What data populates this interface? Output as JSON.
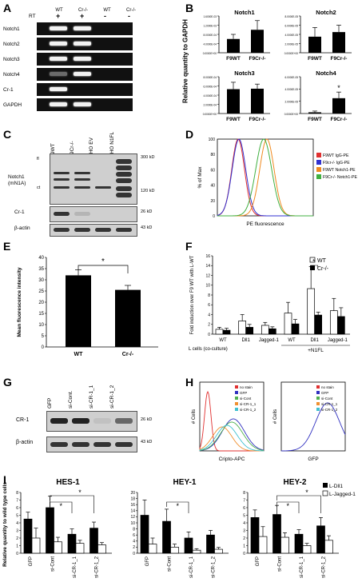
{
  "panels": {
    "A": {
      "letter": "A",
      "cols": [
        "WT",
        "Cr-/-",
        "WT",
        "Cr-/-"
      ],
      "rt_label": "RT",
      "rt_signs": [
        "+",
        "+",
        "-",
        "-"
      ],
      "rows": [
        "Notch1",
        "Notch2",
        "Notch3",
        "Notch4",
        "Cr-1",
        "GAPDH"
      ]
    },
    "B": {
      "letter": "B",
      "ylabel": "Relative quantity to GAPDH",
      "charts": [
        {
          "title": "Notch1",
          "yticks": [
            "0.0000E+00",
            "4.0000E-04",
            "8.0000E-04",
            "1.2000E-03",
            "1.6000E-03"
          ]
        },
        {
          "title": "Notch2",
          "yticks": [
            "0.0000E+00",
            "2.0000E-05",
            "4.0000E-05",
            "6.0000E-05",
            "8.0000E-05"
          ]
        },
        {
          "title": "Notch3",
          "yticks": [
            "0.0000E+00",
            "2.0000E-04",
            "4.0000E-04",
            "6.0000E-04",
            "8.0000E-04"
          ]
        },
        {
          "title": "Notch4",
          "yticks": [
            "0.0000E+00",
            "2.0000E-05",
            "4.0000E-05",
            "6.0000E-05"
          ],
          "star": "*"
        }
      ],
      "xcats": [
        "F9WT",
        "F9Cr-/-"
      ]
    },
    "C": {
      "letter": "C",
      "cols": [
        "F9WT",
        "F9Cr-/-",
        "CHO EV",
        "CHO N1FL"
      ],
      "left_labels": [
        "fl",
        "Notch1\n(mN1A)",
        "ct",
        "Cr-1",
        "β-actin"
      ],
      "right_labels": [
        "300 kD",
        "120 kD",
        "26 kD",
        "43 kD"
      ]
    },
    "D": {
      "letter": "D",
      "legend": [
        "F9WT IgG-PE",
        "F9cr-/- IgG-PE",
        "F9WT Notch1-PE",
        "F9Cr-/- Notch1-PE"
      ],
      "legend_colors": [
        "#e03030",
        "#3030d0",
        "#f08a20",
        "#40b040"
      ],
      "ylabel": "% of Max",
      "xlabel": "PE fluorescence",
      "yticks": [
        "0",
        "20",
        "40",
        "60",
        "80",
        "100"
      ]
    },
    "E": {
      "letter": "E",
      "ylabel": "Mean fluorescence intensity",
      "star": "*",
      "yticks": [
        "0",
        "5",
        "10",
        "15",
        "20",
        "25",
        "30",
        "35",
        "40"
      ]
    },
    "F": {
      "letter": "F",
      "ylabel": "Fold induction over F9 WT with L-WT",
      "legend": [
        "WT",
        "Cr-/-"
      ],
      "groups": [
        "WT",
        "Dll1",
        "Jagged-1",
        "WT",
        "Dll1",
        "Jagged-1"
      ],
      "xleft": "L cells (co-culture)",
      "xright": "+N1FL",
      "star": "*",
      "yticks": [
        "0",
        "2",
        "4",
        "6",
        "8",
        "10",
        "12",
        "14",
        "16"
      ]
    },
    "G": {
      "letter": "G",
      "cols": [
        "GFP",
        "si-Cont.",
        "si-CR-1_1",
        "si-CR-1_2"
      ],
      "left_labels": [
        "CR-1",
        "β-actin"
      ],
      "right_labels": [
        "26 kD",
        "43 kD"
      ]
    },
    "H": {
      "letter": "H",
      "legend": [
        "no stain",
        "GFP",
        "si-Cont",
        "si-CR-1_1",
        "si-CR-1_2"
      ],
      "legend_colors": [
        "#e03030",
        "#3030c0",
        "#50b050",
        "#f09030",
        "#40c0d0"
      ],
      "ylabel": "# Cells",
      "xlabel_left": "Cripto-APC",
      "xlabel_right": "GFP"
    },
    "I": {
      "letter": "I",
      "ylabel": "Relative quantity to wild type cells",
      "legend": [
        "L-Dll1",
        "L-Jagged-1"
      ],
      "cats": [
        "GFP",
        "si-Cont",
        "si-CR-1_1",
        "si-CR-1_2"
      ],
      "charts": [
        {
          "title": "HES-1",
          "yticks": [
            "0",
            "1",
            "2",
            "3",
            "4",
            "5",
            "6",
            "7",
            "8"
          ]
        },
        {
          "title": "HEY-1",
          "yticks": [
            "0",
            "2",
            "4",
            "6",
            "8",
            "10",
            "12",
            "14",
            "16",
            "18",
            "20"
          ]
        },
        {
          "title": "HEY-2",
          "yticks": [
            "0",
            "1",
            "2",
            "3",
            "4",
            "5",
            "6",
            "7",
            "8"
          ]
        }
      ],
      "star": "*"
    }
  },
  "chart_data": [
    {
      "type": "bar",
      "panel": "B",
      "title": "Notch1",
      "categories": [
        "F9WT",
        "F9Cr-/-"
      ],
      "values": [
        0.0006,
        0.001
      ],
      "errors": [
        0.0002,
        0.0004
      ],
      "ylim": [
        0,
        0.0016
      ]
    },
    {
      "type": "bar",
      "panel": "B",
      "title": "Notch2",
      "categories": [
        "F9WT",
        "F9Cr-/-"
      ],
      "values": [
        3.5e-05,
        4.5e-05
      ],
      "errors": [
        2e-05,
        1.5e-05
      ],
      "ylim": [
        0,
        8e-05
      ]
    },
    {
      "type": "bar",
      "panel": "B",
      "title": "Notch3",
      "categories": [
        "F9WT",
        "F9Cr-/-"
      ],
      "values": [
        0.00053,
        0.00054
      ],
      "errors": [
        0.00015,
        0.0001
      ],
      "ylim": [
        0,
        0.0008
      ]
    },
    {
      "type": "bar",
      "panel": "B",
      "title": "Notch4",
      "categories": [
        "F9WT",
        "F9Cr-/-"
      ],
      "values": [
        2e-06,
        2.5e-05
      ],
      "errors": [
        2e-06,
        1e-05
      ],
      "ylim": [
        0,
        6e-05
      ]
    },
    {
      "type": "bar",
      "panel": "E",
      "categories": [
        "WT",
        "Cr-/-"
      ],
      "values": [
        32,
        25.5
      ],
      "errors": [
        2.5,
        2
      ],
      "ylim": [
        0,
        40
      ]
    },
    {
      "type": "bar",
      "panel": "F",
      "categories": [
        "WT",
        "Dll1",
        "Jagged-1",
        "WT",
        "Dll1",
        "Jagged-1"
      ],
      "series": [
        {
          "name": "WT",
          "values": [
            1,
            2.7,
            1.8,
            4.3,
            9.3,
            4.8
          ],
          "errors": [
            0.4,
            1.3,
            0.6,
            2.2,
            4.5,
            2.5
          ]
        },
        {
          "name": "Cr-/-",
          "values": [
            0.8,
            1.4,
            1.1,
            2.1,
            3.9,
            3.6
          ],
          "errors": [
            0.4,
            0.6,
            0.4,
            0.9,
            0.6,
            1.8
          ]
        }
      ],
      "ylim": [
        0,
        16
      ]
    },
    {
      "type": "bar",
      "panel": "I",
      "title": "HES-1",
      "categories": [
        "GFP",
        "si-Cont",
        "si-CR-1_1",
        "si-CR-1_2"
      ],
      "series": [
        {
          "name": "L-Dll1",
          "values": [
            4.5,
            6,
            2.5,
            3.3
          ],
          "errors": [
            0.9,
            1.5,
            0.7,
            0.8
          ]
        },
        {
          "name": "L-Jagged-1",
          "values": [
            2,
            1.5,
            1.3,
            1.1
          ],
          "errors": [
            1.3,
            0.6,
            0.4,
            0.3
          ]
        }
      ],
      "ylim": [
        0,
        8
      ]
    },
    {
      "type": "bar",
      "panel": "I",
      "title": "HEY-1",
      "categories": [
        "GFP",
        "si-Cont",
        "si-CR-1_1",
        "si-CR-1_2"
      ],
      "series": [
        {
          "name": "L-Dll1",
          "values": [
            12.5,
            10.5,
            5,
            6
          ],
          "errors": [
            5,
            4,
            2,
            1.5
          ]
        },
        {
          "name": "L-Jagged-1",
          "values": [
            3,
            2,
            1,
            1.3
          ],
          "errors": [
            2,
            1,
            0.5,
            0.6
          ]
        }
      ],
      "ylim": [
        0,
        20
      ]
    },
    {
      "type": "bar",
      "panel": "I",
      "title": "HEY-2",
      "categories": [
        "GFP",
        "si-Cont",
        "si-CR-1_1",
        "si-CR-1_2"
      ],
      "series": [
        {
          "name": "L-Dll1",
          "values": [
            4.7,
            5.1,
            2.5,
            3.6
          ],
          "errors": [
            1,
            1.2,
            0.6,
            1.1
          ]
        },
        {
          "name": "L-Jagged-1",
          "values": [
            2.2,
            2.1,
            1,
            1.7
          ],
          "errors": [
            1.3,
            0.6,
            0.3,
            0.6
          ]
        }
      ],
      "ylim": [
        0,
        8
      ]
    }
  ]
}
